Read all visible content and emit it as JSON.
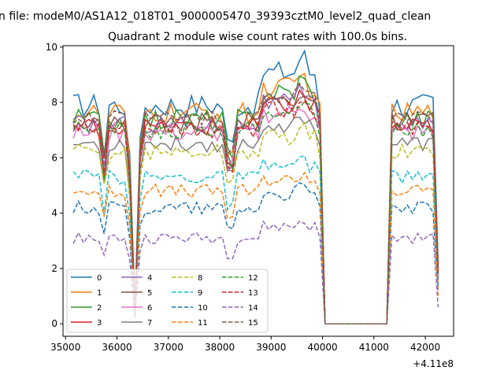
{
  "chart_data": {
    "type": "line",
    "suptitle": "n file: modeM0/AS1A12_018T01_9000005470_39393cztM0_level2_quad_clean",
    "title": "Quadrant 2 module wise count rates with 100.0s bins.",
    "xlabel": "",
    "ylabel": "",
    "offset_text": "+4.11e8",
    "xlim": [
      34950,
      42550
    ],
    "ylim": [
      -0.45,
      10.05
    ],
    "xticks": [
      35000,
      36000,
      37000,
      38000,
      39000,
      40000,
      41000,
      42000
    ],
    "yticks": [
      0,
      2,
      4,
      6,
      8,
      10
    ],
    "legend_position": "lower-left",
    "legend_columns": 4,
    "series": [
      {
        "name": "0",
        "color": "#1f77b4",
        "dash": "solid",
        "base": 7.9,
        "amp": 0.45,
        "min": 0.6,
        "peak": 9.6
      },
      {
        "name": "1",
        "color": "#ff7f0e",
        "dash": "solid",
        "base": 7.6,
        "amp": 0.4,
        "min": 0.5,
        "peak": 8.9
      },
      {
        "name": "2",
        "color": "#2ca02c",
        "dash": "solid",
        "base": 7.4,
        "amp": 0.4,
        "min": 0.5,
        "peak": 8.8
      },
      {
        "name": "3",
        "color": "#d62728",
        "dash": "solid",
        "base": 7.1,
        "amp": 0.35,
        "min": 0.5,
        "peak": 8.2
      },
      {
        "name": "4",
        "color": "#9467bd",
        "dash": "solid",
        "base": 7.2,
        "amp": 0.35,
        "min": 0.4,
        "peak": 8.3
      },
      {
        "name": "5",
        "color": "#8c564b",
        "dash": "solid",
        "base": 7.3,
        "amp": 0.35,
        "min": 0.4,
        "peak": 8.4
      },
      {
        "name": "6",
        "color": "#e377c2",
        "dash": "solid",
        "base": 6.9,
        "amp": 0.35,
        "min": 0.5,
        "peak": 7.9
      },
      {
        "name": "7",
        "color": "#7f7f7f",
        "dash": "solid",
        "base": 6.5,
        "amp": 0.3,
        "min": 0.3,
        "peak": 7.5
      },
      {
        "name": "8",
        "color": "#bcbd22",
        "dash": "dashed",
        "base": 6.2,
        "amp": 0.3,
        "min": 0.4,
        "peak": 7.0
      },
      {
        "name": "9",
        "color": "#17becf",
        "dash": "dashed",
        "base": 5.3,
        "amp": 0.25,
        "min": 0.4,
        "peak": 5.9
      },
      {
        "name": "10",
        "color": "#1f77b4",
        "dash": "dashed",
        "base": 4.2,
        "amp": 0.25,
        "min": 0.3,
        "peak": 4.9
      },
      {
        "name": "11",
        "color": "#ff7f0e",
        "dash": "dashed",
        "base": 4.8,
        "amp": 0.25,
        "min": 0.4,
        "peak": 5.4
      },
      {
        "name": "12",
        "color": "#2ca02c",
        "dash": "dashed",
        "base": 7.0,
        "amp": 0.3,
        "min": 0.5,
        "peak": 8.0
      },
      {
        "name": "13",
        "color": "#d62728",
        "dash": "dashed",
        "base": 7.0,
        "amp": 0.35,
        "min": 0.5,
        "peak": 8.1
      },
      {
        "name": "14",
        "color": "#9467bd",
        "dash": "dashed",
        "base": 3.1,
        "amp": 0.2,
        "min": 0.2,
        "peak": 3.7
      },
      {
        "name": "15",
        "color": "#8c564b",
        "dash": "dashed",
        "base": 7.4,
        "amp": 0.3,
        "min": 0.5,
        "peak": 8.6
      }
    ],
    "segments": {
      "active1": [
        35150,
        36150
      ],
      "dip": [
        36150,
        36450
      ],
      "active2": [
        36450,
        39950
      ],
      "gap": [
        40050,
        41250
      ],
      "active3": [
        41350,
        42250
      ]
    }
  }
}
